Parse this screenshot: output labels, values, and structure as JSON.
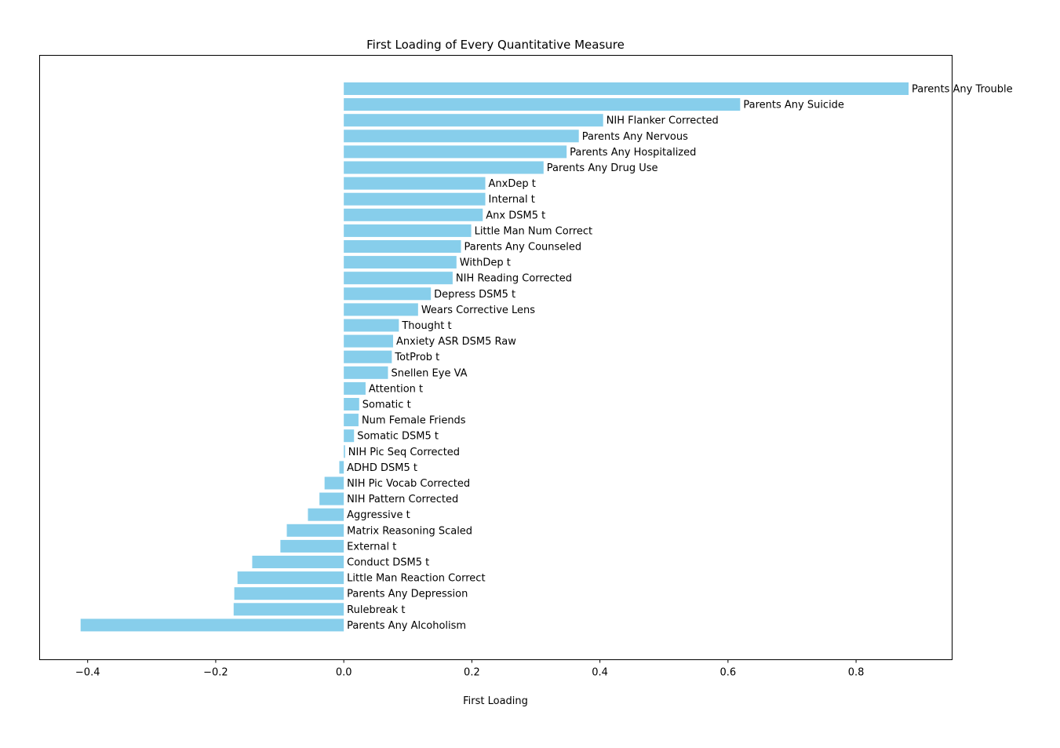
{
  "chart_data": {
    "type": "bar",
    "orientation": "horizontal",
    "title": "First Loading of Every Quantitative Measure",
    "xlabel": "First Loading",
    "ylabel": "",
    "xlim": [
      -0.475,
      0.95
    ],
    "xticks": [
      -0.4,
      -0.2,
      0.0,
      0.2,
      0.4,
      0.6,
      0.8
    ],
    "xtick_labels": [
      "−0.4",
      "−0.2",
      "0.0",
      "0.2",
      "0.4",
      "0.6",
      "0.8"
    ],
    "y_tick_labels_shown": false,
    "grid": false,
    "legend": "none",
    "bar_color": "#87CEEB",
    "categories": [
      "Parents Any Trouble",
      "Parents Any Suicide",
      "NIH Flanker Corrected",
      "Parents Any Nervous",
      "Parents Any Hospitalized",
      "Parents Any Drug Use",
      "AnxDep t",
      "Internal t",
      "Anx DSM5 t",
      "Little Man Num Correct",
      "Parents Any Counseled",
      "WithDep t",
      "NIH Reading Corrected",
      "Depress DSM5 t",
      "Wears Corrective Lens",
      "Thought t",
      "Anxiety ASR DSM5 Raw",
      "TotProb t",
      "Snellen Eye VA",
      "Attention t",
      "Somatic t",
      "Num Female Friends",
      "Somatic DSM5 t",
      "NIH Pic Seq Corrected",
      "ADHD DSM5 t",
      "NIH Pic Vocab Corrected",
      "NIH Pattern Corrected",
      "Aggressive t",
      "Matrix Reasoning Scaled",
      "External t",
      "Conduct DSM5 t",
      "Little Man Reaction Correct",
      "Parents Any Depression",
      "Rulebreak t",
      "Parents Any Alcoholism"
    ],
    "values": [
      0.882,
      0.619,
      0.405,
      0.367,
      0.348,
      0.312,
      0.221,
      0.221,
      0.217,
      0.199,
      0.183,
      0.176,
      0.17,
      0.136,
      0.116,
      0.086,
      0.077,
      0.075,
      0.069,
      0.034,
      0.024,
      0.023,
      0.016,
      0.002,
      -0.007,
      -0.03,
      -0.038,
      -0.056,
      -0.089,
      -0.099,
      -0.143,
      -0.166,
      -0.171,
      -0.172,
      -0.411
    ]
  }
}
